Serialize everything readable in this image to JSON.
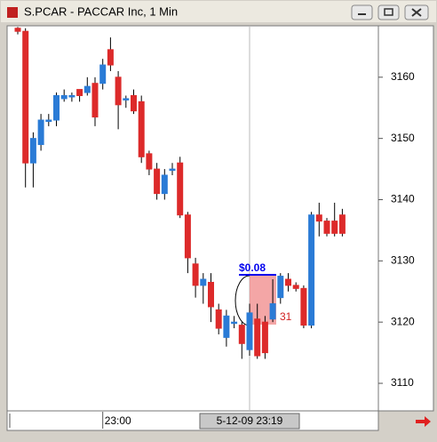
{
  "chart_data": {
    "type": "candlestick",
    "title": "S.PCAR - PACCAR Inc, 1 Min",
    "categories": [
      null,
      null,
      null,
      null,
      null,
      null,
      null,
      null,
      null,
      null,
      null,
      "23:00",
      null,
      null,
      null,
      null,
      null,
      null,
      null,
      null,
      null,
      null,
      null,
      null,
      null,
      null,
      null,
      null,
      null,
      null,
      "5-12-09 23:19",
      null,
      null,
      null,
      null,
      null,
      null,
      null,
      null,
      null,
      null,
      null,
      null
    ],
    "open": [
      3168,
      3167.5,
      3146,
      3149,
      3152.8,
      3153,
      3156.5,
      3157,
      3158,
      3157.5,
      3159,
      3159,
      3164.5,
      3160,
      3156.5,
      3157,
      3156,
      3147.5,
      3145,
      3141,
      3145,
      3146,
      3137.5,
      3129.5,
      3126,
      3126.5,
      3122,
      3117.5,
      3120,
      3119.5,
      3115.5,
      3120.5,
      3120,
      3120.5,
      3124,
      3127,
      3126,
      3125.5,
      3119.5,
      3137.5,
      3136.5,
      3136.5,
      3137.5
    ],
    "high": [
      3168.2,
      3168,
      3151,
      3154,
      3154,
      3157.5,
      3158,
      3157.5,
      3158,
      3160,
      3160,
      3163,
      3166.5,
      3161,
      3157,
      3158,
      3157,
      3148,
      3146,
      3145,
      3146,
      3147,
      3138,
      3130.5,
      3128,
      3128,
      3123,
      3122,
      3121,
      3120,
      3123,
      3123,
      3121,
      3127,
      3128,
      3128,
      3126.5,
      3126,
      3138,
      3139.5,
      3137,
      3139.5,
      3138.5
    ],
    "low": [
      3167,
      3142,
      3142,
      3148,
      3152,
      3152,
      3156,
      3156,
      3156,
      3157,
      3152,
      3158,
      3161,
      3151.5,
      3155,
      3154,
      3146,
      3144,
      3140,
      3140,
      3144,
      3137,
      3128,
      3124,
      3123,
      3120,
      3118,
      3116,
      3119,
      3114,
      3114.5,
      3114,
      3114,
      3120,
      3123,
      3125,
      3125,
      3119,
      3119,
      3134,
      3134,
      3134,
      3134
    ],
    "close": [
      3167.5,
      3146,
      3150,
      3153,
      3153,
      3157,
      3157,
      3157,
      3157,
      3158.5,
      3153.5,
      3162,
      3162,
      3155.5,
      3156.5,
      3154.5,
      3147,
      3145,
      3141,
      3144,
      3145,
      3137.5,
      3130.5,
      3126,
      3127,
      3122.5,
      3119,
      3121,
      3120,
      3116.5,
      3121.5,
      3114.5,
      3115,
      3123,
      3127.5,
      3126,
      3125.5,
      3119.5,
      3137.5,
      3136.5,
      3134.5,
      3134.5,
      3134.5
    ],
    "up_color": "#2a7bd6",
    "down_color": "#dd2a2a",
    "ylim": [
      3105.5,
      3168.4
    ],
    "yticks": [
      3110,
      3120,
      3130,
      3140,
      3150,
      3160
    ],
    "annotations": [
      {
        "text": "$0.08",
        "color": "#0000ee"
      },
      {
        "text": "31",
        "color": "#d02020"
      }
    ]
  }
}
